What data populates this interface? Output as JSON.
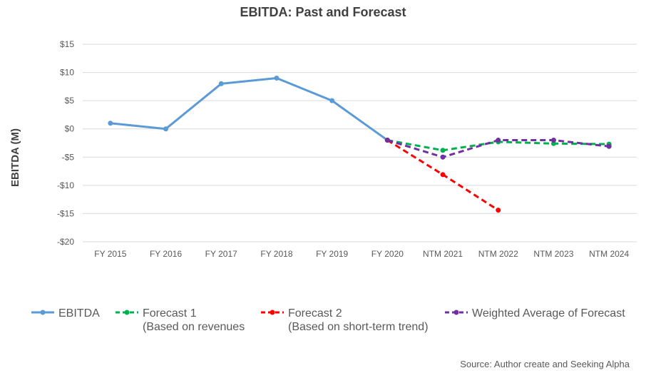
{
  "chart_data": {
    "type": "line",
    "title": "EBITDA: Past and Forecast",
    "ylabel": "EBITDA (M)",
    "xlabel": "",
    "ylim": [
      -20,
      15
    ],
    "yticks": [
      15,
      10,
      5,
      0,
      -5,
      -10,
      -15,
      -20
    ],
    "ytick_labels": [
      "$15",
      "$10",
      "$5",
      "$0",
      "-$5",
      "-$10",
      "-$15",
      "-$20"
    ],
    "categories": [
      "FY 2015",
      "FY 2016",
      "FY 2017",
      "FY 2018",
      "FY 2019",
      "FY 2020",
      "NTM 2021",
      "NTM 2022",
      "NTM 2023",
      "NTM 2024"
    ],
    "grid": true,
    "legend_position": "bottom",
    "series": [
      {
        "name": "EBITDA",
        "color": "#5b9bd5",
        "dash": "solid",
        "values": [
          1,
          0,
          8,
          9,
          5,
          -2,
          null,
          null,
          null,
          null
        ]
      },
      {
        "name": "Forecast 1",
        "name_line2": "(Based on revenues",
        "color": "#00b050",
        "dash": "dashed",
        "values": [
          null,
          null,
          null,
          null,
          null,
          -2,
          -3.8,
          -2.3,
          -2.6,
          -2.7
        ]
      },
      {
        "name": "Forecast 2",
        "name_line2": "(Based on short-term trend)",
        "color": "#ff0000",
        "dash": "dashed",
        "values": [
          null,
          null,
          null,
          null,
          null,
          -2,
          -8.1,
          -14.4,
          null,
          null
        ]
      },
      {
        "name": "Weighted Average of Forecast",
        "color": "#7030a0",
        "dash": "dashed",
        "values": [
          null,
          null,
          null,
          null,
          null,
          -2,
          -5,
          -2,
          -2,
          -3.1
        ]
      }
    ],
    "source": "Source: Author create and Seeking Alpha"
  }
}
